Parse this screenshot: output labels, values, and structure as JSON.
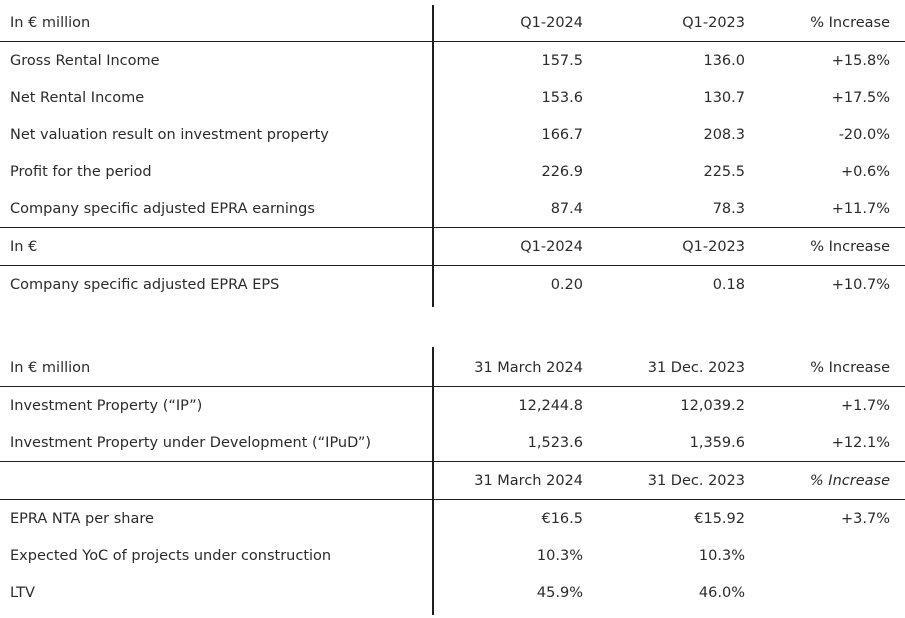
{
  "table1": {
    "header": [
      "In € million",
      "Q1-2024",
      "Q1-2023",
      "% Increase"
    ],
    "rows": [
      [
        "Gross Rental Income",
        "157.5",
        "136.0",
        "+15.8%"
      ],
      [
        "Net Rental Income",
        "153.6",
        "130.7",
        "+17.5%"
      ],
      [
        "Net valuation result on investment property",
        "166.7",
        "208.3",
        "-20.0%"
      ],
      [
        "Profit for the period",
        "226.9",
        "225.5",
        "+0.6%"
      ],
      [
        "Company specific adjusted EPRA earnings",
        "87.4",
        "78.3",
        "+11.7%"
      ]
    ],
    "header2": [
      "In €",
      "Q1-2024",
      "Q1-2023",
      "% Increase"
    ],
    "rows2": [
      [
        "Company specific adjusted EPRA EPS",
        "0.20",
        "0.18",
        "+10.7%"
      ]
    ]
  },
  "table2": {
    "header": [
      "In € million",
      "31 March 2024",
      "31 Dec. 2023",
      "% Increase"
    ],
    "rows": [
      [
        "Investment Property (“IP”)",
        "12,244.8",
        "12,039.2",
        "+1.7%"
      ],
      [
        "Investment Property under Development (“IPuD”)",
        "1,523.6",
        "1,359.6",
        "+12.1%"
      ]
    ],
    "header2": [
      "",
      "31 March 2024",
      "31 Dec. 2023",
      "% Increase"
    ],
    "rows2": [
      [
        "EPRA NTA per share",
        "€16.5",
        "€15.92",
        "+3.7%"
      ],
      [
        "Expected YoC of projects under construction",
        "10.3%",
        "10.3%",
        ""
      ],
      [
        "LTV",
        "45.9%",
        "46.0%",
        ""
      ]
    ]
  }
}
